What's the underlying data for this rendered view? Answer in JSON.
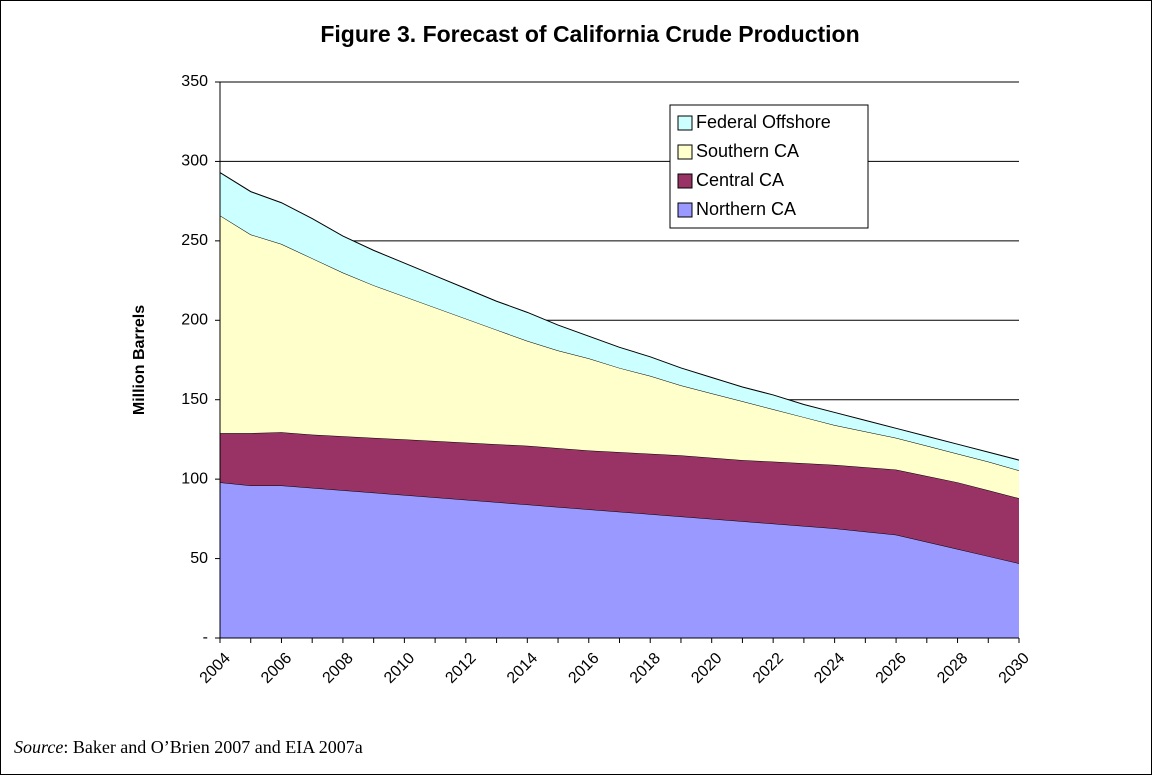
{
  "chart_data": {
    "type": "stacked_area",
    "title": "Figure 3. Forecast of California Crude Production",
    "ylabel": "Million Barrels",
    "x": [
      2004,
      2005,
      2006,
      2007,
      2008,
      2009,
      2010,
      2011,
      2012,
      2013,
      2014,
      2015,
      2016,
      2017,
      2018,
      2019,
      2020,
      2021,
      2022,
      2023,
      2024,
      2025,
      2026,
      2027,
      2028,
      2029,
      2030
    ],
    "xlim": [
      2004,
      2030
    ],
    "xticks": [
      2004,
      2006,
      2008,
      2010,
      2012,
      2014,
      2016,
      2018,
      2020,
      2022,
      2024,
      2026,
      2028,
      2030
    ],
    "ylim": [
      0,
      350
    ],
    "yticks": [
      {
        "value": 0,
        "label": "-"
      },
      50,
      100,
      150,
      200,
      250,
      300,
      350
    ],
    "grid": true,
    "legend": "upper right",
    "series": [
      {
        "name": "Northern CA",
        "color": "#9999ff",
        "values": [
          98,
          96,
          96,
          94.5,
          93,
          91.5,
          90,
          88.5,
          87,
          85.5,
          84,
          82.5,
          81,
          79.5,
          78,
          76.5,
          75,
          73.5,
          72,
          70.5,
          69,
          67,
          65,
          60.5,
          56,
          51.5,
          47
        ]
      },
      {
        "name": "Central CA",
        "color": "#993366",
        "values": [
          31,
          33,
          33.5,
          33.5,
          34,
          34.5,
          35,
          35.5,
          36,
          36.5,
          37,
          37,
          37,
          37.5,
          38,
          38.5,
          38.5,
          38.5,
          39,
          39.5,
          40,
          40.5,
          41,
          41.5,
          42,
          41.5,
          41
        ]
      },
      {
        "name": "Southern CA",
        "color": "#ffffcc",
        "values": [
          137,
          125,
          118.5,
          111,
          103,
          96,
          90,
          84,
          78,
          72,
          66,
          61.5,
          58,
          53,
          49,
          44,
          40.5,
          37,
          33,
          29,
          25,
          22.5,
          20,
          19,
          18,
          18,
          17.5
        ]
      },
      {
        "name": "Federal Offshore",
        "color": "#ccffff",
        "values": [
          27,
          27,
          26,
          25,
          23,
          22,
          21,
          20,
          19,
          18,
          18,
          16,
          14,
          13,
          12,
          11,
          10,
          9,
          9,
          8,
          8,
          7,
          6,
          6,
          6,
          6,
          6.5
        ]
      }
    ]
  },
  "source": {
    "label": "Source",
    "text": ": Baker and O’Brien 2007 and EIA 2007a"
  }
}
